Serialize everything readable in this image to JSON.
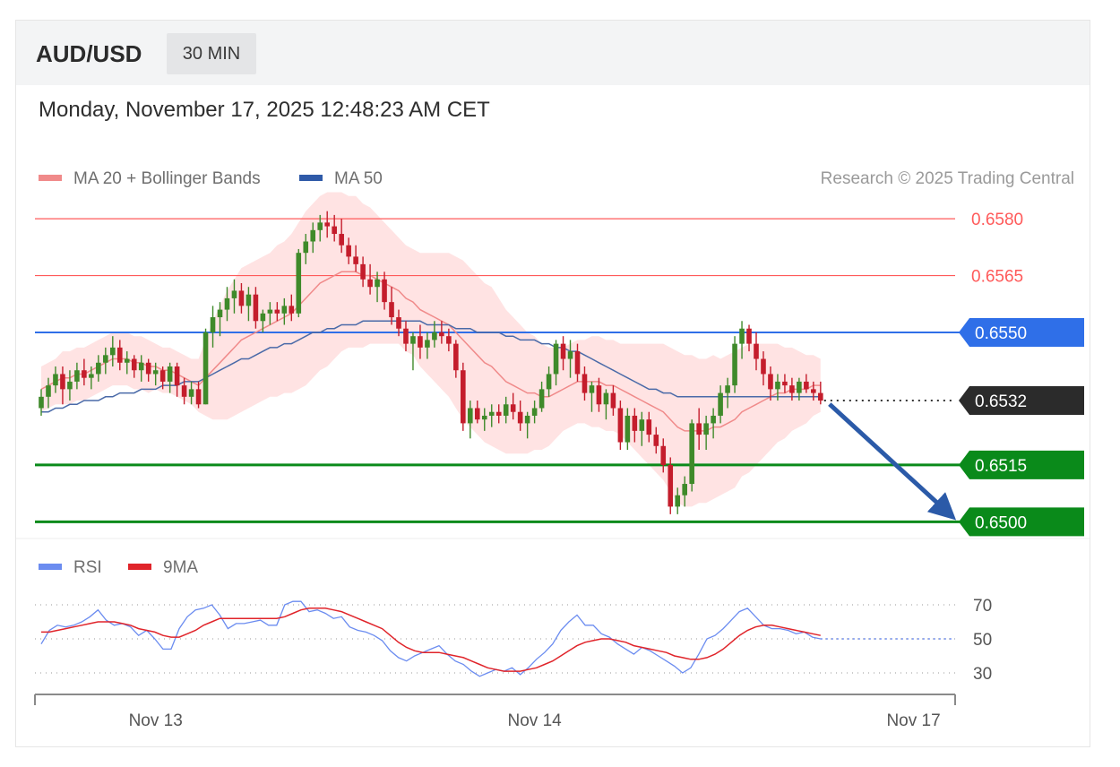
{
  "header": {
    "symbol": "AUD/USD",
    "timeframe": "30 MIN"
  },
  "datetime": "Monday, November 17, 2025 12:48:23 AM CET",
  "copyright": "Research © 2025 Trading Central",
  "colors": {
    "resistance": "#ff5a5a",
    "pivot": "#2f6fe8",
    "last": "#2b2b2b",
    "support": "#0a8a1a",
    "candle_up": "#3f8a2a",
    "candle_down": "#c41d2c",
    "ma20": "#f08a8a",
    "bands": "#ffd9d9",
    "ma50": "#4a6aa8",
    "arrow": "#2b5aa8",
    "rsi": "#6b8cf0",
    "rsi_ma": "#e0242a"
  },
  "chart_data": [
    {
      "type": "candlestick",
      "legend": [
        {
          "name": "MA 20 + Bollinger Bands",
          "color": "#f08a8a"
        },
        {
          "name": "MA 50",
          "color": "#2f5aa8"
        }
      ],
      "ylim": [
        0.6497,
        0.6585
      ],
      "x_labels": [
        "Nov 13",
        "Nov 14",
        "Nov 17"
      ],
      "x_label_index": [
        16,
        69,
        122
      ],
      "levels": [
        {
          "label": "0.6580",
          "value": 0.658,
          "kind": "resistance"
        },
        {
          "label": "0.6565",
          "value": 0.6565,
          "kind": "resistance"
        },
        {
          "label": "0.6550",
          "value": 0.655,
          "kind": "pivot"
        },
        {
          "label": "0.6532",
          "value": 0.6532,
          "kind": "last"
        },
        {
          "label": "0.6515",
          "value": 0.6515,
          "kind": "support"
        },
        {
          "label": "0.6500",
          "value": 0.65,
          "kind": "support"
        }
      ],
      "arrow": {
        "from_value": 0.6532,
        "to_value": 0.65
      },
      "candles": [
        [
          0.653,
          0.6535,
          0.6528,
          0.6533
        ],
        [
          0.6533,
          0.6538,
          0.653,
          0.6536
        ],
        [
          0.6536,
          0.6541,
          0.6534,
          0.6539
        ],
        [
          0.6539,
          0.6541,
          0.6531,
          0.6535
        ],
        [
          0.6535,
          0.654,
          0.6532,
          0.6537
        ],
        [
          0.6537,
          0.6542,
          0.6535,
          0.654
        ],
        [
          0.654,
          0.6543,
          0.6536,
          0.6538
        ],
        [
          0.6538,
          0.6541,
          0.6535,
          0.6539
        ],
        [
          0.6539,
          0.6544,
          0.6537,
          0.6542
        ],
        [
          0.6542,
          0.6546,
          0.6539,
          0.6544
        ],
        [
          0.6544,
          0.6549,
          0.6541,
          0.6546
        ],
        [
          0.6546,
          0.6548,
          0.654,
          0.6542
        ],
        [
          0.6542,
          0.6545,
          0.6539,
          0.6543
        ],
        [
          0.6543,
          0.6544,
          0.6538,
          0.654
        ],
        [
          0.654,
          0.6544,
          0.6537,
          0.6542
        ],
        [
          0.6542,
          0.6543,
          0.6537,
          0.6539
        ],
        [
          0.6539,
          0.6542,
          0.6536,
          0.654
        ],
        [
          0.654,
          0.6541,
          0.6535,
          0.6537
        ],
        [
          0.6537,
          0.6542,
          0.6534,
          0.6541
        ],
        [
          0.6541,
          0.6542,
          0.6533,
          0.6536
        ],
        [
          0.6536,
          0.6538,
          0.6531,
          0.6533
        ],
        [
          0.6533,
          0.6537,
          0.6531,
          0.6535
        ],
        [
          0.6535,
          0.6537,
          0.653,
          0.6531
        ],
        [
          0.6531,
          0.6551,
          0.6531,
          0.655
        ],
        [
          0.655,
          0.6557,
          0.6546,
          0.6554
        ],
        [
          0.6554,
          0.6558,
          0.6549,
          0.6556
        ],
        [
          0.6556,
          0.6562,
          0.6553,
          0.6559
        ],
        [
          0.6559,
          0.6564,
          0.6555,
          0.6561
        ],
        [
          0.6561,
          0.6563,
          0.6555,
          0.6557
        ],
        [
          0.6557,
          0.6562,
          0.6553,
          0.656
        ],
        [
          0.656,
          0.6562,
          0.6551,
          0.6553
        ],
        [
          0.6553,
          0.6556,
          0.655,
          0.6555
        ],
        [
          0.6555,
          0.6558,
          0.6552,
          0.6556
        ],
        [
          0.6556,
          0.6558,
          0.6553,
          0.6555
        ],
        [
          0.6555,
          0.6559,
          0.6552,
          0.6557
        ],
        [
          0.6557,
          0.656,
          0.6553,
          0.6555
        ],
        [
          0.6555,
          0.6572,
          0.6554,
          0.6571
        ],
        [
          0.6571,
          0.6576,
          0.6568,
          0.6574
        ],
        [
          0.6574,
          0.6579,
          0.6571,
          0.6577
        ],
        [
          0.6577,
          0.6581,
          0.6574,
          0.6579
        ],
        [
          0.6579,
          0.6582,
          0.6575,
          0.6578
        ],
        [
          0.6578,
          0.6581,
          0.6574,
          0.6576
        ],
        [
          0.6576,
          0.658,
          0.6571,
          0.6573
        ],
        [
          0.6573,
          0.6575,
          0.6568,
          0.657
        ],
        [
          0.657,
          0.6573,
          0.6566,
          0.6568
        ],
        [
          0.6568,
          0.657,
          0.6562,
          0.6564
        ],
        [
          0.6564,
          0.6568,
          0.656,
          0.6562
        ],
        [
          0.6562,
          0.6566,
          0.6558,
          0.6564
        ],
        [
          0.6564,
          0.6566,
          0.6556,
          0.6558
        ],
        [
          0.6558,
          0.6562,
          0.6552,
          0.6554
        ],
        [
          0.6554,
          0.6556,
          0.6549,
          0.6551
        ],
        [
          0.6551,
          0.6553,
          0.6545,
          0.6547
        ],
        [
          0.6547,
          0.655,
          0.654,
          0.6549
        ],
        [
          0.6549,
          0.6552,
          0.6543,
          0.6546
        ],
        [
          0.6546,
          0.655,
          0.6543,
          0.6548
        ],
        [
          0.6548,
          0.6553,
          0.6546,
          0.655
        ],
        [
          0.655,
          0.6553,
          0.6547,
          0.6549
        ],
        [
          0.6549,
          0.6551,
          0.6545,
          0.6547
        ],
        [
          0.6547,
          0.6548,
          0.6538,
          0.654
        ],
        [
          0.654,
          0.6542,
          0.6524,
          0.6526
        ],
        [
          0.6526,
          0.6532,
          0.6522,
          0.653
        ],
        [
          0.653,
          0.6532,
          0.6526,
          0.6527
        ],
        [
          0.6527,
          0.653,
          0.6524,
          0.6528
        ],
        [
          0.6528,
          0.6531,
          0.6525,
          0.6529
        ],
        [
          0.6529,
          0.6531,
          0.6526,
          0.6528
        ],
        [
          0.6528,
          0.6533,
          0.6526,
          0.6531
        ],
        [
          0.6531,
          0.6534,
          0.6527,
          0.6529
        ],
        [
          0.6529,
          0.6532,
          0.6524,
          0.6526
        ],
        [
          0.6526,
          0.6529,
          0.6522,
          0.6528
        ],
        [
          0.6528,
          0.6532,
          0.6526,
          0.653
        ],
        [
          0.653,
          0.6537,
          0.6529,
          0.6535
        ],
        [
          0.6535,
          0.6541,
          0.6533,
          0.6539
        ],
        [
          0.6539,
          0.6548,
          0.6536,
          0.6547
        ],
        [
          0.6547,
          0.6549,
          0.654,
          0.6543
        ],
        [
          0.6543,
          0.6548,
          0.6538,
          0.6545
        ],
        [
          0.6545,
          0.6547,
          0.6537,
          0.6539
        ],
        [
          0.6539,
          0.6541,
          0.6532,
          0.6534
        ],
        [
          0.6534,
          0.6537,
          0.6529,
          0.6536
        ],
        [
          0.6536,
          0.6538,
          0.6529,
          0.6531
        ],
        [
          0.6531,
          0.6535,
          0.6527,
          0.6534
        ],
        [
          0.6534,
          0.6536,
          0.6528,
          0.653
        ],
        [
          0.653,
          0.6532,
          0.6519,
          0.6521
        ],
        [
          0.6521,
          0.653,
          0.6519,
          0.6528
        ],
        [
          0.6528,
          0.653,
          0.6521,
          0.6524
        ],
        [
          0.6524,
          0.6529,
          0.652,
          0.6527
        ],
        [
          0.6527,
          0.6529,
          0.6521,
          0.6523
        ],
        [
          0.6523,
          0.6525,
          0.6518,
          0.652
        ],
        [
          0.652,
          0.6522,
          0.6513,
          0.6515
        ],
        [
          0.6515,
          0.6517,
          0.6502,
          0.6504
        ],
        [
          0.6504,
          0.6509,
          0.6502,
          0.6507
        ],
        [
          0.6507,
          0.6512,
          0.6504,
          0.651
        ],
        [
          0.651,
          0.6527,
          0.6508,
          0.6526
        ],
        [
          0.6526,
          0.653,
          0.6519,
          0.6523
        ],
        [
          0.6523,
          0.6528,
          0.6519,
          0.6526
        ],
        [
          0.6526,
          0.653,
          0.6522,
          0.6528
        ],
        [
          0.6528,
          0.6536,
          0.6526,
          0.6534
        ],
        [
          0.6534,
          0.6538,
          0.653,
          0.6536
        ],
        [
          0.6536,
          0.6549,
          0.6534,
          0.6547
        ],
        [
          0.6547,
          0.6553,
          0.6543,
          0.6551
        ],
        [
          0.6551,
          0.6552,
          0.6545,
          0.6547
        ],
        [
          0.6547,
          0.655,
          0.654,
          0.6543
        ],
        [
          0.6543,
          0.6545,
          0.6536,
          0.6539
        ],
        [
          0.6539,
          0.6541,
          0.6532,
          0.6535
        ],
        [
          0.6535,
          0.6539,
          0.6532,
          0.6537
        ],
        [
          0.6537,
          0.6539,
          0.6534,
          0.6536
        ],
        [
          0.6536,
          0.6538,
          0.6532,
          0.6534
        ],
        [
          0.6534,
          0.6538,
          0.6532,
          0.6537
        ],
        [
          0.6537,
          0.6539,
          0.6534,
          0.6535
        ],
        [
          0.6535,
          0.6537,
          0.6532,
          0.6534
        ],
        [
          0.6534,
          0.6537,
          0.6531,
          0.6532
        ]
      ],
      "ma20": [
        0.6535,
        0.6536,
        0.6537,
        0.6538,
        0.6538,
        0.6539,
        0.6539,
        0.654,
        0.6541,
        0.6542,
        0.6543,
        0.6543,
        0.6543,
        0.6542,
        0.6542,
        0.6541,
        0.6541,
        0.654,
        0.654,
        0.6539,
        0.6538,
        0.6537,
        0.6536,
        0.6538,
        0.654,
        0.6542,
        0.6544,
        0.6546,
        0.6548,
        0.6549,
        0.655,
        0.6551,
        0.6552,
        0.6553,
        0.6554,
        0.6555,
        0.6557,
        0.6559,
        0.6561,
        0.6563,
        0.6564,
        0.6565,
        0.6566,
        0.6566,
        0.6566,
        0.6565,
        0.6565,
        0.6564,
        0.6563,
        0.6562,
        0.6561,
        0.6559,
        0.6558,
        0.6556,
        0.6555,
        0.6554,
        0.6553,
        0.6552,
        0.655,
        0.6548,
        0.6546,
        0.6544,
        0.6542,
        0.6541,
        0.6539,
        0.6537,
        0.6536,
        0.6535,
        0.6534,
        0.6534,
        0.6533,
        0.6533,
        0.6534,
        0.6535,
        0.6536,
        0.6537,
        0.6537,
        0.6537,
        0.6537,
        0.6536,
        0.6536,
        0.6535,
        0.6534,
        0.6533,
        0.6532,
        0.6531,
        0.653,
        0.6529,
        0.6527,
        0.6525,
        0.6524,
        0.6524,
        0.6524,
        0.6524,
        0.6525,
        0.6525,
        0.6526,
        0.6527,
        0.6529,
        0.653,
        0.6531,
        0.6532,
        0.6533,
        0.6534,
        0.6534,
        0.6535,
        0.6535,
        0.6535,
        0.6536,
        0.6536
      ],
      "ma50": [
        0.6529,
        0.6529,
        0.653,
        0.653,
        0.6531,
        0.6531,
        0.6532,
        0.6532,
        0.6532,
        0.6533,
        0.6533,
        0.6534,
        0.6534,
        0.6534,
        0.6535,
        0.6535,
        0.6535,
        0.6536,
        0.6536,
        0.6536,
        0.6537,
        0.6537,
        0.6537,
        0.6538,
        0.6539,
        0.654,
        0.6541,
        0.6542,
        0.6543,
        0.6543,
        0.6544,
        0.6545,
        0.6546,
        0.6546,
        0.6547,
        0.6547,
        0.6548,
        0.6549,
        0.655,
        0.655,
        0.6551,
        0.6551,
        0.6552,
        0.6552,
        0.6552,
        0.6553,
        0.6553,
        0.6553,
        0.6553,
        0.6553,
        0.6553,
        0.6553,
        0.6553,
        0.6553,
        0.6552,
        0.6552,
        0.6552,
        0.6552,
        0.6551,
        0.6551,
        0.6551,
        0.655,
        0.655,
        0.655,
        0.655,
        0.6549,
        0.6549,
        0.6548,
        0.6548,
        0.6548,
        0.6547,
        0.6547,
        0.6546,
        0.6546,
        0.6545,
        0.6545,
        0.6544,
        0.6543,
        0.6542,
        0.6541,
        0.654,
        0.6539,
        0.6538,
        0.6537,
        0.6536,
        0.6535,
        0.6535,
        0.6534,
        0.6534,
        0.6533,
        0.6533,
        0.6533,
        0.6533,
        0.6533,
        0.6533,
        0.6533,
        0.6533,
        0.6533,
        0.6533,
        0.6533,
        0.6533,
        0.6533,
        0.6533,
        0.6533,
        0.6533,
        0.6533,
        0.6533,
        0.6533,
        0.6533,
        0.6533
      ],
      "band_width": [
        0.0006,
        0.0006,
        0.0006,
        0.0007,
        0.0007,
        0.0007,
        0.0007,
        0.0007,
        0.0007,
        0.0007,
        0.0007,
        0.0007,
        0.0007,
        0.0007,
        0.0007,
        0.0007,
        0.0006,
        0.0006,
        0.0006,
        0.0006,
        0.0006,
        0.0006,
        0.0007,
        0.001,
        0.0013,
        0.0015,
        0.0017,
        0.0018,
        0.0019,
        0.0019,
        0.0019,
        0.0019,
        0.0019,
        0.002,
        0.002,
        0.0021,
        0.0022,
        0.0023,
        0.0023,
        0.0023,
        0.0023,
        0.0022,
        0.0021,
        0.002,
        0.002,
        0.0019,
        0.0018,
        0.0017,
        0.0016,
        0.0015,
        0.0014,
        0.0014,
        0.0014,
        0.0015,
        0.0016,
        0.0017,
        0.0018,
        0.0019,
        0.002,
        0.0021,
        0.0021,
        0.0021,
        0.0021,
        0.0021,
        0.002,
        0.0019,
        0.0018,
        0.0017,
        0.0016,
        0.0015,
        0.0014,
        0.0013,
        0.0012,
        0.0011,
        0.0011,
        0.0011,
        0.0011,
        0.0012,
        0.0012,
        0.0012,
        0.0012,
        0.0012,
        0.0013,
        0.0014,
        0.0015,
        0.0016,
        0.0017,
        0.0018,
        0.0019,
        0.002,
        0.002,
        0.002,
        0.0019,
        0.0019,
        0.0019,
        0.0018,
        0.0018,
        0.0018,
        0.0017,
        0.0017,
        0.0016,
        0.0015,
        0.0014,
        0.0013,
        0.0012,
        0.0011,
        0.001,
        0.0009,
        0.0008,
        0.0007
      ]
    },
    {
      "type": "line",
      "legend": [
        {
          "name": "RSI",
          "color": "#6b8cf0"
        },
        {
          "name": "9MA",
          "color": "#e0242a"
        }
      ],
      "ylim": [
        20,
        80
      ],
      "yticks": [
        70,
        50,
        30
      ],
      "rsi": [
        47,
        55,
        58,
        57,
        58,
        60,
        63,
        67,
        61,
        58,
        59,
        57,
        52,
        55,
        50,
        44,
        44,
        56,
        63,
        67,
        68,
        70,
        64,
        56,
        59,
        59,
        60,
        61,
        58,
        58,
        70,
        72,
        72,
        66,
        67,
        65,
        62,
        63,
        57,
        55,
        54,
        52,
        49,
        43,
        39,
        37,
        40,
        42,
        44,
        46,
        41,
        37,
        35,
        31,
        28,
        30,
        32,
        31,
        33,
        29,
        33,
        38,
        42,
        47,
        55,
        60,
        64,
        58,
        58,
        53,
        51,
        47,
        44,
        41,
        45,
        43,
        40,
        37,
        34,
        30,
        33,
        41,
        50,
        52,
        56,
        61,
        66,
        68,
        63,
        58,
        56,
        56,
        55,
        53,
        54,
        51,
        50
      ],
      "rsi_ma": [
        54,
        54,
        55,
        56,
        57,
        58,
        59,
        60,
        60,
        60,
        59,
        58,
        56,
        55,
        54,
        52,
        51,
        51,
        53,
        55,
        58,
        60,
        62,
        62,
        62,
        62,
        62,
        62,
        62,
        62,
        63,
        65,
        67,
        68,
        68,
        68,
        67,
        66,
        64,
        62,
        60,
        58,
        56,
        52,
        48,
        45,
        43,
        42,
        42,
        42,
        41,
        40,
        39,
        37,
        35,
        33,
        32,
        31,
        31,
        31,
        32,
        33,
        35,
        37,
        40,
        43,
        46,
        48,
        49,
        50,
        50,
        49,
        48,
        46,
        45,
        44,
        43,
        42,
        40,
        39,
        38,
        38,
        39,
        41,
        44,
        48,
        52,
        55,
        57,
        58,
        58,
        57,
        56,
        55,
        54,
        53,
        52
      ]
    }
  ]
}
